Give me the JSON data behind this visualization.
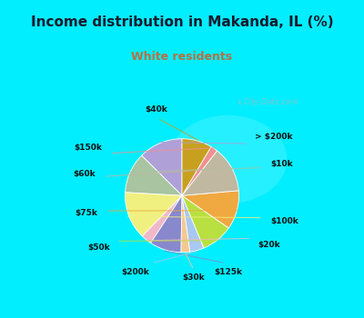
{
  "title": "Income distribution in Makanda, IL (%)",
  "subtitle": "White residents",
  "title_color": "#1a1a2e",
  "subtitle_color": "#b87040",
  "bg_cyan": "#00eeff",
  "bg_chart": "#e0f0e8",
  "labels": [
    "> $200k",
    "$10k",
    "$100k",
    "$20k",
    "$125k",
    "$30k",
    "$200k",
    "$50k",
    "$75k",
    "$60k",
    "$150k",
    "$40k"
  ],
  "values": [
    12.5,
    11.5,
    13.5,
    3.0,
    9.0,
    2.5,
    4.0,
    9.0,
    11.0,
    13.0,
    2.0,
    8.5
  ],
  "colors": [
    "#b0a0d8",
    "#a8c4a0",
    "#f0f080",
    "#f0b8c8",
    "#8888cc",
    "#f5c890",
    "#a8c8f0",
    "#b8e040",
    "#f0a840",
    "#c0b8a0",
    "#f09090",
    "#c8a020"
  ],
  "startangle": 90,
  "figsize": [
    4.0,
    3.5
  ],
  "dpi": 100,
  "label_positions": {
    "> $200k": [
      0.72,
      0.58,
      "left"
    ],
    "$10k": [
      0.88,
      0.3,
      "left"
    ],
    "$100k": [
      0.88,
      -0.28,
      "left"
    ],
    "$20k": [
      0.75,
      -0.52,
      "left"
    ],
    "$125k": [
      0.45,
      -0.8,
      "center"
    ],
    "$30k": [
      0.1,
      -0.86,
      "center"
    ],
    "$200k": [
      -0.35,
      -0.8,
      "right"
    ],
    "$50k": [
      -0.75,
      -0.55,
      "right"
    ],
    "$75k": [
      -0.88,
      -0.2,
      "right"
    ],
    "$60k": [
      -0.9,
      0.2,
      "right"
    ],
    "$150k": [
      -0.83,
      0.47,
      "right"
    ],
    "$40k": [
      -0.28,
      0.86,
      "center"
    ]
  }
}
